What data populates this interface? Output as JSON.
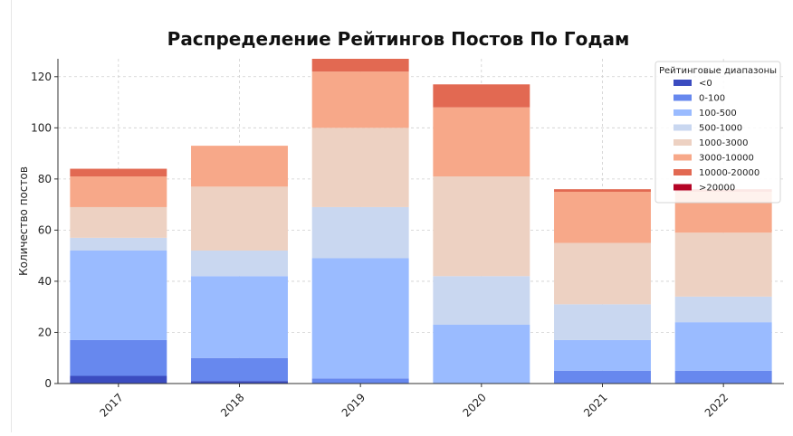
{
  "chart_data": {
    "type": "bar",
    "stacked": true,
    "title": "Распределение Рейтингов Постов По Годам",
    "xlabel": "",
    "ylabel": "Количество постов",
    "categories": [
      "2017",
      "2018",
      "2019",
      "2020",
      "2021",
      "2022"
    ],
    "ylim": [
      0,
      127
    ],
    "yticks": [
      0,
      20,
      40,
      60,
      80,
      100,
      120
    ],
    "grid": true,
    "legend": {
      "title": "Рейтинговые диапазоны",
      "placement": "top-right"
    },
    "series": [
      {
        "name": "<0",
        "color": "#3b4cc0",
        "values": [
          3,
          1,
          0,
          0,
          0,
          0
        ]
      },
      {
        "name": "0-100",
        "color": "#6788ee",
        "values": [
          14,
          9,
          2,
          0,
          5,
          5
        ]
      },
      {
        "name": "100-500",
        "color": "#9abbff",
        "values": [
          35,
          32,
          47,
          23,
          12,
          19
        ]
      },
      {
        "name": "500-1000",
        "color": "#c9d7f0",
        "values": [
          5,
          10,
          20,
          19,
          14,
          10
        ]
      },
      {
        "name": "1000-3000",
        "color": "#edd1c2",
        "values": [
          12,
          25,
          31,
          39,
          24,
          25
        ]
      },
      {
        "name": "3000-10000",
        "color": "#f7a889",
        "values": [
          12,
          16,
          22,
          27,
          20,
          16
        ]
      },
      {
        "name": "10000-20000",
        "color": "#e26952",
        "values": [
          3,
          0,
          5,
          9,
          1,
          1
        ]
      },
      {
        "name": ">20000",
        "color": "#b40426",
        "values": [
          0,
          0,
          0,
          0,
          0,
          0
        ]
      }
    ]
  }
}
